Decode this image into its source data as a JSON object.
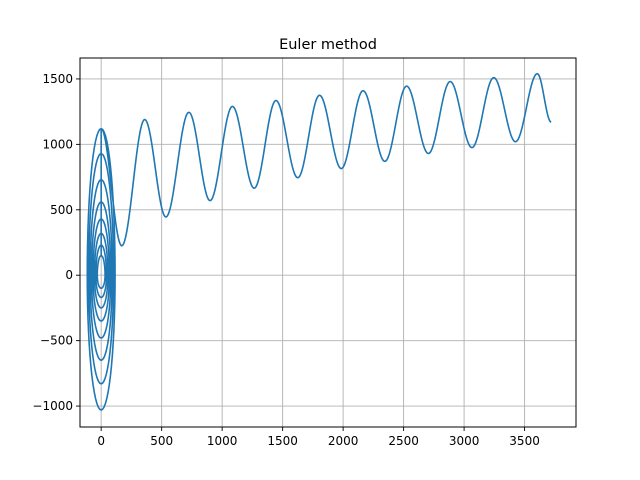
{
  "chart_data": {
    "type": "line",
    "title": "Euler method",
    "xlabel": "",
    "ylabel": "",
    "xlim": [
      -175,
      3925
    ],
    "ylim": [
      -1160,
      1660
    ],
    "grid": true,
    "line_color": "#1f77b4",
    "grid_color": "#b0b0b0",
    "x_ticks": [
      0,
      500,
      1000,
      1500,
      2000,
      2500,
      3000,
      3500
    ],
    "x_tick_labels": [
      "0",
      "500",
      "1000",
      "1500",
      "2000",
      "2500",
      "3000",
      "3500"
    ],
    "y_ticks": [
      -1000,
      -500,
      0,
      500,
      1000,
      1500
    ],
    "y_tick_labels": [
      "−1000",
      "−500",
      "0",
      "500",
      "1000",
      "1500"
    ],
    "series": [
      {
        "loops": {
          "center_x": 0,
          "x_amplitude": 115,
          "y_tops": [
            1120,
            930,
            730,
            560,
            430,
            320,
            230,
            150
          ],
          "y_bottoms": [
            -1030,
            -830,
            -650,
            -480,
            -350,
            -250,
            -170,
            -100
          ]
        },
        "waves": {
          "x_start": 0,
          "x_end": 3720,
          "y_start": 1120,
          "y_end": 1170,
          "minima": [
            [
              170,
              225
            ],
            [
              535,
              445
            ],
            [
              900,
              570
            ],
            [
              1265,
              665
            ],
            [
              1625,
              745
            ],
            [
              1985,
              815
            ],
            [
              2345,
              870
            ],
            [
              2705,
              930
            ],
            [
              3065,
              975
            ],
            [
              3425,
              1020
            ]
          ],
          "maxima": [
            [
              360,
              1190
            ],
            [
              725,
              1245
            ],
            [
              1085,
              1290
            ],
            [
              1445,
              1335
            ],
            [
              1805,
              1375
            ],
            [
              2165,
              1410
            ],
            [
              2525,
              1445
            ],
            [
              2885,
              1480
            ],
            [
              3245,
              1510
            ],
            [
              3605,
              1540
            ]
          ]
        }
      }
    ]
  }
}
